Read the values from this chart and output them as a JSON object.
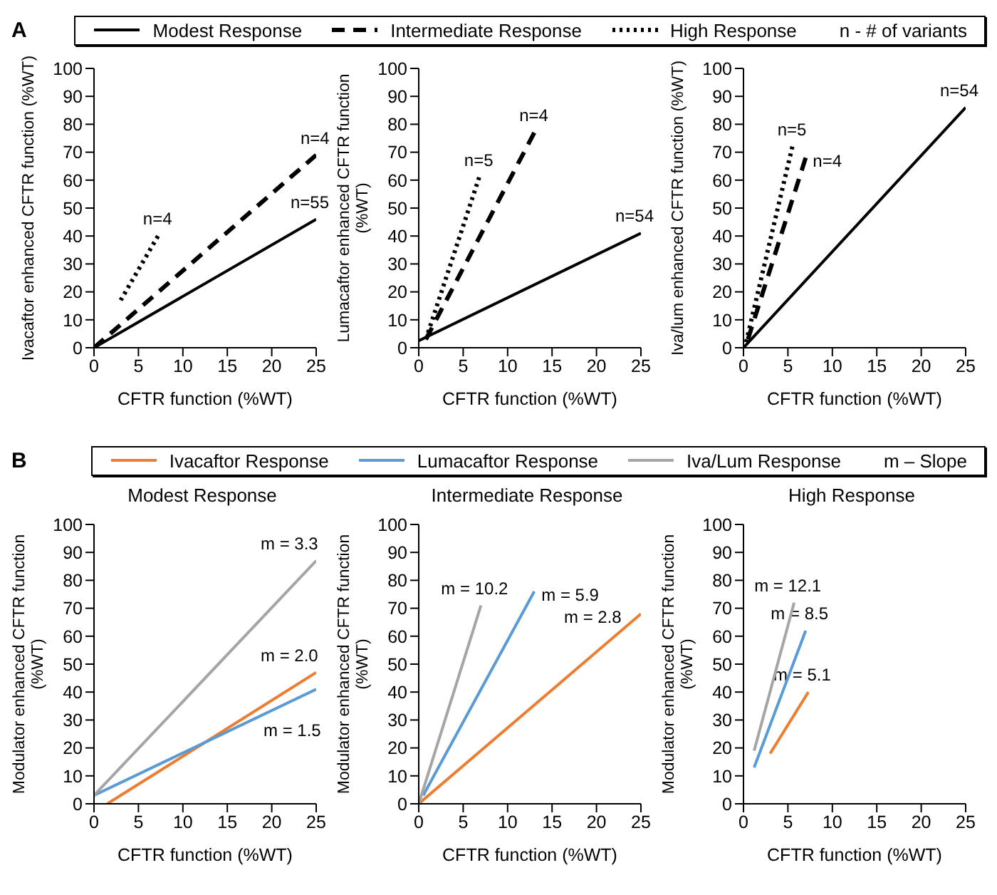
{
  "chart_data": [
    {
      "type": "line",
      "xlabel": "CFTR function (%WT)",
      "ylabel": "Ivacaftor enhanced CFTR function (%WT)",
      "xlim": [
        0,
        25
      ],
      "ylim": [
        0,
        100
      ],
      "xticks": [
        0,
        5,
        10,
        15,
        20,
        25
      ],
      "yticks": [
        0,
        10,
        20,
        30,
        40,
        50,
        60,
        70,
        80,
        90,
        100
      ],
      "legend": "top",
      "annotations": [
        "A",
        "n - # of variants",
        {
          "text": "n=4",
          "x": 7.2,
          "y": 40
        },
        {
          "text": "n=4",
          "x": 25,
          "y": 69
        },
        {
          "text": "n=55",
          "x": 25,
          "y": 46
        }
      ],
      "series": [
        {
          "name": "Modest Response",
          "color": "#000000",
          "line_style": "solid",
          "x": [
            0,
            25
          ],
          "values": [
            0,
            46
          ]
        },
        {
          "name": "Intermediate Response",
          "color": "#000000",
          "line_style": "dashed",
          "x": [
            0,
            25
          ],
          "values": [
            0,
            69
          ]
        },
        {
          "name": "High Response",
          "color": "#000000",
          "line_style": "dotted",
          "x": [
            3,
            7.2
          ],
          "values": [
            17,
            40
          ]
        }
      ]
    },
    {
      "type": "line",
      "xlabel": "CFTR function (%WT)",
      "ylabel": "Lumacaftor enhanced CFTR function (%WT)",
      "xlim": [
        0,
        25
      ],
      "ylim": [
        0,
        100
      ],
      "xticks": [
        0,
        5,
        10,
        15,
        20,
        25
      ],
      "yticks": [
        0,
        10,
        20,
        30,
        40,
        50,
        60,
        70,
        80,
        90,
        100
      ],
      "annotations": [
        {
          "text": "n=5",
          "x": 6.8,
          "y": 61
        },
        {
          "text": "n=4",
          "x": 13,
          "y": 77
        },
        {
          "text": "n=54",
          "x": 25,
          "y": 41
        }
      ],
      "series": [
        {
          "color": "#000000",
          "line_style": "solid",
          "x": [
            0,
            25
          ],
          "values": [
            2.5,
            41
          ]
        },
        {
          "color": "#000000",
          "line_style": "dashed",
          "x": [
            0.8,
            13
          ],
          "values": [
            3,
            77
          ]
        },
        {
          "color": "#000000",
          "line_style": "dotted",
          "x": [
            0.8,
            6.8
          ],
          "values": [
            3,
            61
          ]
        }
      ]
    },
    {
      "type": "line",
      "xlabel": "CFTR function (%WT)",
      "ylabel": "Iva/lum enhanced CFTR function (%WT)",
      "xlim": [
        0,
        25
      ],
      "ylim": [
        0,
        100
      ],
      "xticks": [
        0,
        5,
        10,
        15,
        20,
        25
      ],
      "yticks": [
        0,
        10,
        20,
        30,
        40,
        50,
        60,
        70,
        80,
        90,
        100
      ],
      "annotations": [
        {
          "text": "n=5",
          "x": 5.5,
          "y": 72
        },
        {
          "text": "n=4",
          "x": 7,
          "y": 68
        },
        {
          "text": "n=54",
          "x": 25,
          "y": 86
        }
      ],
      "series": [
        {
          "color": "#000000",
          "line_style": "solid",
          "x": [
            0,
            25
          ],
          "values": [
            0,
            86
          ]
        },
        {
          "color": "#000000",
          "line_style": "dashed",
          "x": [
            0.5,
            7
          ],
          "values": [
            3,
            68
          ]
        },
        {
          "color": "#000000",
          "line_style": "dotted",
          "x": [
            0.3,
            5.5
          ],
          "values": [
            2,
            72
          ]
        }
      ]
    },
    {
      "type": "line",
      "title": "Modest Response",
      "xlabel": "CFTR function (%WT)",
      "ylabel": "Modulator enhanced CFTR function (%WT)",
      "xlim": [
        0,
        25
      ],
      "ylim": [
        0,
        100
      ],
      "xticks": [
        0,
        5,
        10,
        15,
        20,
        25
      ],
      "yticks": [
        0,
        10,
        20,
        30,
        40,
        50,
        60,
        70,
        80,
        90,
        100
      ],
      "legend": "top",
      "annotations": [
        "B",
        "m – Slope",
        {
          "text": "m = 3.3",
          "x": 25,
          "y": 87
        },
        {
          "text": "m = 2.0",
          "x": 25,
          "y": 47
        },
        {
          "text": "m = 1.5",
          "x": 25,
          "y": 41
        }
      ],
      "series": [
        {
          "name": "Ivacaftor Response",
          "color": "#ed7d31",
          "line_style": "solid",
          "x": [
            1.5,
            25
          ],
          "values": [
            0,
            47
          ]
        },
        {
          "name": "Lumacaftor Response",
          "color": "#5b9bd5",
          "line_style": "solid",
          "x": [
            0,
            25
          ],
          "values": [
            3,
            41
          ]
        },
        {
          "name": "Iva/Lum Response",
          "color": "#a5a5a5",
          "line_style": "solid",
          "x": [
            0,
            25
          ],
          "values": [
            3,
            87
          ]
        }
      ]
    },
    {
      "type": "line",
      "title": "Intermediate Response",
      "xlabel": "CFTR function (%WT)",
      "ylabel": "Modulator enhanced CFTR function (%WT)",
      "xlim": [
        0,
        25
      ],
      "ylim": [
        0,
        100
      ],
      "xticks": [
        0,
        5,
        10,
        15,
        20,
        25
      ],
      "yticks": [
        0,
        10,
        20,
        30,
        40,
        50,
        60,
        70,
        80,
        90,
        100
      ],
      "annotations": [
        {
          "text": "m = 10.2",
          "x": 7,
          "y": 71
        },
        {
          "text": "m = 5.9",
          "x": 13,
          "y": 76
        },
        {
          "text": "m = 2.8",
          "x": 25,
          "y": 68
        }
      ],
      "series": [
        {
          "color": "#ed7d31",
          "line_style": "solid",
          "x": [
            0,
            25
          ],
          "values": [
            0,
            68
          ]
        },
        {
          "color": "#5b9bd5",
          "line_style": "solid",
          "x": [
            0.5,
            13
          ],
          "values": [
            3,
            76
          ]
        },
        {
          "color": "#a5a5a5",
          "line_style": "solid",
          "x": [
            0,
            7
          ],
          "values": [
            0,
            71
          ]
        }
      ]
    },
    {
      "type": "line",
      "title": "High Response",
      "xlabel": "CFTR function (%WT)",
      "ylabel": "Modulator enhanced CFTR function (%WT)",
      "xlim": [
        0,
        25
      ],
      "ylim": [
        0,
        100
      ],
      "xticks": [
        0,
        5,
        10,
        15,
        20,
        25
      ],
      "yticks": [
        0,
        10,
        20,
        30,
        40,
        50,
        60,
        70,
        80,
        90,
        100
      ],
      "annotations": [
        {
          "text": "m = 12.1",
          "x": 5.7,
          "y": 72
        },
        {
          "text": "m = 8.5",
          "x": 7,
          "y": 62
        },
        {
          "text": "m = 5.1",
          "x": 7.3,
          "y": 40
        }
      ],
      "series": [
        {
          "color": "#ed7d31",
          "line_style": "solid",
          "x": [
            3,
            7.3
          ],
          "values": [
            18,
            40
          ]
        },
        {
          "color": "#5b9bd5",
          "line_style": "solid",
          "x": [
            1.2,
            7
          ],
          "values": [
            13,
            62
          ]
        },
        {
          "color": "#a5a5a5",
          "line_style": "solid",
          "x": [
            1.2,
            5.7
          ],
          "values": [
            19,
            72
          ]
        }
      ]
    }
  ]
}
